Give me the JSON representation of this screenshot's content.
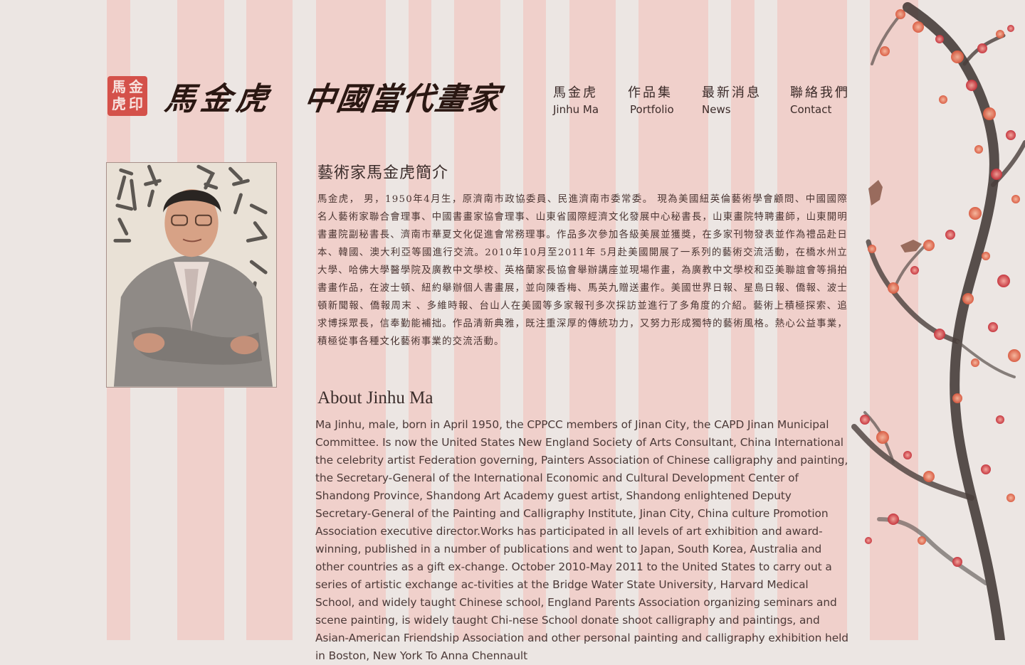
{
  "colors": {
    "background": "#ece6e3",
    "stripe": "#f0d0cb",
    "seal_red": "#d4514a",
    "text": "#4a3532"
  },
  "seal": {
    "chars": [
      "馬",
      "金",
      "虎",
      "印"
    ]
  },
  "logo": {
    "name": "馬金虎",
    "subtitle": "中國當代畫家"
  },
  "nav": {
    "items": [
      {
        "zh": "馬金虎",
        "en": "Jinhu Ma"
      },
      {
        "zh": "作品集",
        "en": "Portfolio"
      },
      {
        "zh": "最新消息",
        "en": "News"
      },
      {
        "zh": "聯絡我們",
        "en": "Contact"
      }
    ]
  },
  "portrait": {
    "icon": "portrait-photo"
  },
  "intro_zh": {
    "title": "藝術家馬金虎簡介",
    "body": "馬金虎， 男，1950年4月生，原濟南市政協委員、民進濟南市委常委。 現為美國紐英倫藝術學會顧問、中國國際名人藝術家聯合會理事、中國書畫家協會理事、山東省國際經濟文化發展中心秘書長，山東畫院特聘畫師，山東開明書畫院副秘書長、濟南市華夏文化促進會常務理事。作品多次參加各級美展並獲獎，在多家刊物發表並作為禮品赴日本、韓國、澳大利亞等國進行交流。2010年10月至2011年 5月赴美國開展了一系列的藝術交流活動，在橋水州立大學、哈佛大學醫學院及廣教中文學校、英格蘭家長協會舉辦講座並現場作畫，為廣教中文學校和亞美聯誼會等捐拍書畫作品，在波士頓、紐約舉辦個人書畫展，並向陳香梅、馬英九贈送畫作。美國世界日報、星島日報、僑報、波士頓新聞報、僑報周末 、多維時報、台山人在美國等多家報刊多次採訪並進行了多角度的介紹。藝術上積極探索、追求博採眾長，信奉勤能補拙。作品清新典雅，既注重深厚的傳統功力，又努力形成獨特的藝術風格。熱心公益事業，積極從事各種文化藝術事業的交流活動。"
  },
  "intro_en": {
    "title": "About Jinhu Ma",
    "body": "Ma Jinhu, male, born in April 1950, the CPPCC members of Jinan City, the CAPD Jinan Municipal Committee. Is now the United States New England Society of Arts Consultant, China International the celebrity artist Federation governing, Painters Association of Chinese calligraphy and painting, the Secretary-General of the International Economic and Cultural Development Center of Shandong Province, Shandong Art Academy guest artist, Shandong enlightened Deputy Secretary-General of the Painting and Calligraphy Institute, Jinan City, China culture Promotion Association executive director.Works has participated in all levels of art exhibition and award-winning, published in a number of publications and went to Japan, South Korea, Australia and other countries as a gift ex-change. October 2010-May 2011 to the United States to carry out a series of artistic exchange ac-tivities at the Bridge Water State University, Harvard Medical School, and widely taught Chinese school, England Parents Association organizing seminars and scene painting, is widely taught Chi-nese School donate shoot calligraphy and paintings, and Asian-American Friendship Association and other personal painting and calligraphy exhibition held in Boston, New York To Anna Chennault"
  }
}
